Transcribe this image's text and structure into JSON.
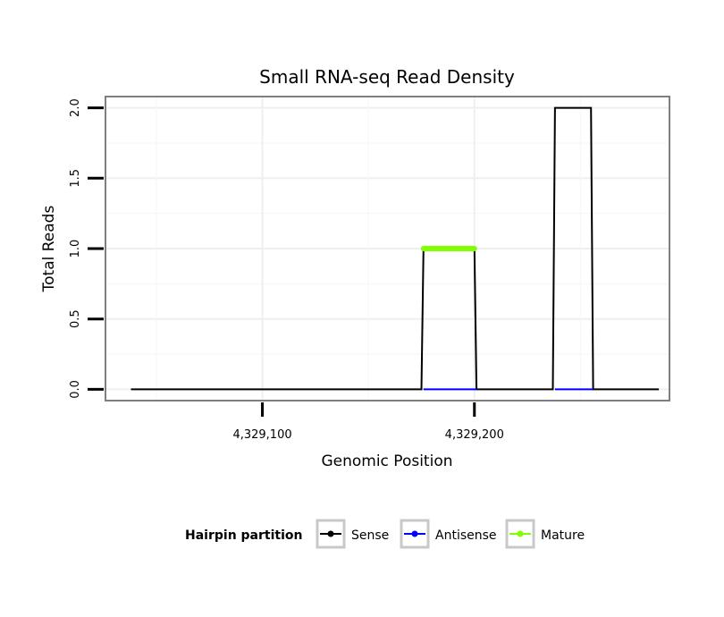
{
  "chart_data": {
    "type": "line",
    "title": "Small RNA-seq Read Density",
    "xlabel": "Genomic Position",
    "ylabel": "Total Reads",
    "xlim": [
      4329026,
      4329292
    ],
    "ylim": [
      -0.08,
      2.08
    ],
    "x_ticks": [
      {
        "value": 4329100,
        "label": "4,329,100"
      },
      {
        "value": 4329200,
        "label": "4,329,200"
      }
    ],
    "y_ticks": [
      {
        "value": 0.0,
        "label": "0.0"
      },
      {
        "value": 0.5,
        "label": "0.5"
      },
      {
        "value": 1.0,
        "label": "1.0"
      },
      {
        "value": 1.5,
        "label": "1.5"
      },
      {
        "value": 2.0,
        "label": "2.0"
      }
    ],
    "grid": true,
    "legend": {
      "position": "bottom",
      "title": "Hairpin partition",
      "entries": [
        {
          "name": "Sense",
          "color": "#000000"
        },
        {
          "name": "Antisense",
          "color": "#0000ff"
        },
        {
          "name": "Mature",
          "color": "#7fff00"
        }
      ]
    },
    "series": [
      {
        "name": "Sense",
        "color": "#000000",
        "x": [
          4329038,
          4329175,
          4329176,
          4329200,
          4329201,
          4329237,
          4329238,
          4329255,
          4329256,
          4329287
        ],
        "y": [
          0,
          0,
          1,
          1,
          0,
          0,
          2,
          2,
          0,
          0
        ]
      },
      {
        "name": "Antisense",
        "color": "#0000ff",
        "x": [
          4329176,
          4329201,
          4329238,
          4329256
        ],
        "y": [
          0,
          0,
          0,
          0
        ],
        "segments": [
          [
            0,
            1
          ],
          [
            2,
            3
          ]
        ]
      },
      {
        "name": "Mature",
        "color": "#7fff00",
        "x": [
          4329176,
          4329200
        ],
        "y": [
          1,
          1
        ]
      }
    ]
  }
}
